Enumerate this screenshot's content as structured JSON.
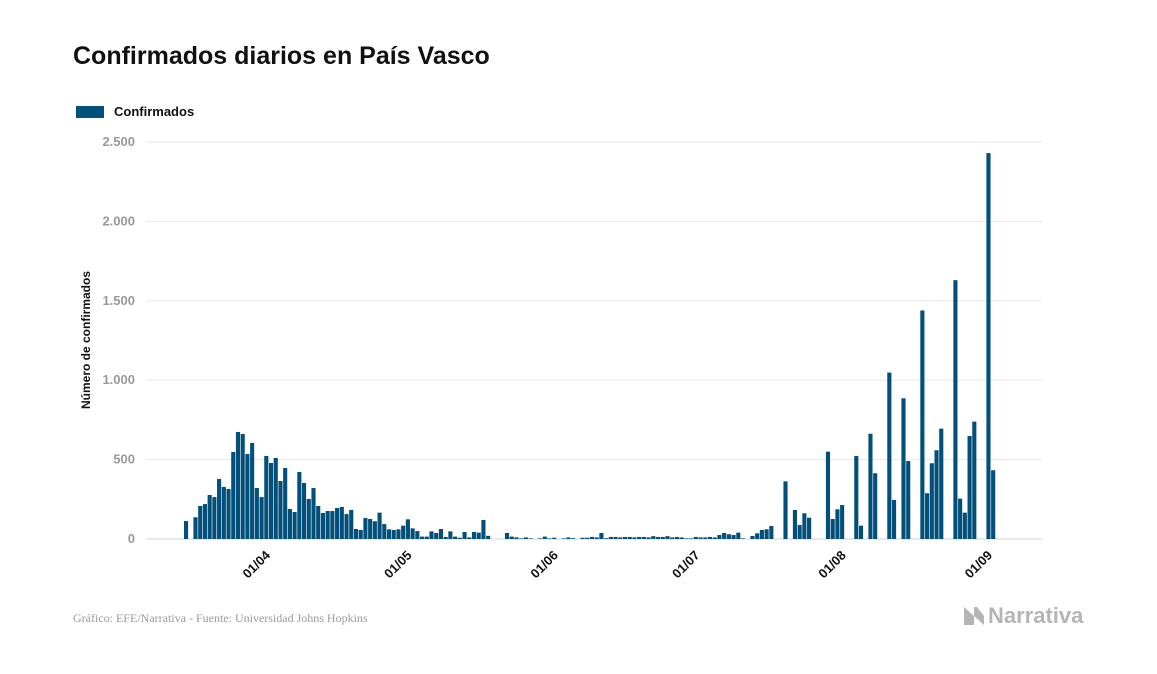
{
  "title": "Confirmados diarios en País Vasco",
  "footer": "Gráfico: EFE/Narrativa - Fuente: Universidad Johns Hopkins",
  "logo_text": "Narrativa",
  "colors": {
    "bar": "#02507a",
    "grid": "#e8e8e8",
    "tick": "#999999"
  },
  "chart_data": {
    "type": "bar",
    "title": "Confirmados diarios en País Vasco",
    "xlabel": "",
    "ylabel": "Número de confirmados",
    "legend": [
      "Confirmados"
    ],
    "legend_position": "top-left",
    "x_start_date": "2020-03-14",
    "ylim": [
      0,
      2500
    ],
    "yticks": [
      0,
      500,
      1000,
      1500,
      2000,
      2500
    ],
    "ytick_labels": [
      "0",
      "500",
      "1.000",
      "1.500",
      "2.000",
      "2.500"
    ],
    "xticks": [
      {
        "label": "01/04",
        "day": 18
      },
      {
        "label": "01/05",
        "day": 48
      },
      {
        "label": "01/06",
        "day": 79
      },
      {
        "label": "01/07",
        "day": 109
      },
      {
        "label": "01/08",
        "day": 140
      },
      {
        "label": "01/09",
        "day": 171
      }
    ],
    "grid": true,
    "series": [
      {
        "name": "Confirmados",
        "values": [
          113,
          0,
          137,
          208,
          220,
          277,
          264,
          378,
          328,
          315,
          548,
          674,
          661,
          535,
          605,
          321,
          264,
          523,
          479,
          510,
          365,
          447,
          189,
          170,
          422,
          353,
          252,
          321,
          208,
          164,
          176,
          176,
          195,
          202,
          157,
          183,
          63,
          57,
          132,
          126,
          112,
          166,
          94,
          61,
          57,
          61,
          84,
          124,
          67,
          50,
          15,
          15,
          48,
          38,
          63,
          13,
          48,
          15,
          8,
          44,
          10,
          44,
          40,
          120,
          20,
          0,
          0,
          0,
          38,
          15,
          10,
          4,
          10,
          4,
          0,
          4,
          15,
          4,
          8,
          0,
          4,
          10,
          5,
          0,
          8,
          8,
          13,
          10,
          38,
          5,
          13,
          13,
          10,
          13,
          13,
          10,
          13,
          13,
          10,
          18,
          13,
          13,
          18,
          10,
          13,
          10,
          4,
          4,
          13,
          10,
          10,
          13,
          10,
          25,
          38,
          30,
          25,
          40,
          4,
          0,
          19,
          36,
          57,
          61,
          82,
          0,
          0,
          363,
          0,
          183,
          88,
          162,
          134,
          0,
          0,
          0,
          550,
          126,
          187,
          214,
          0,
          0,
          523,
          84,
          0,
          663,
          414,
          0,
          0,
          1048,
          246,
          0,
          886,
          491,
          0,
          0,
          1439,
          288,
          477,
          559,
          695,
          0,
          0,
          1630,
          254,
          166,
          649,
          739,
          0,
          0,
          2430,
          433
        ]
      }
    ]
  }
}
